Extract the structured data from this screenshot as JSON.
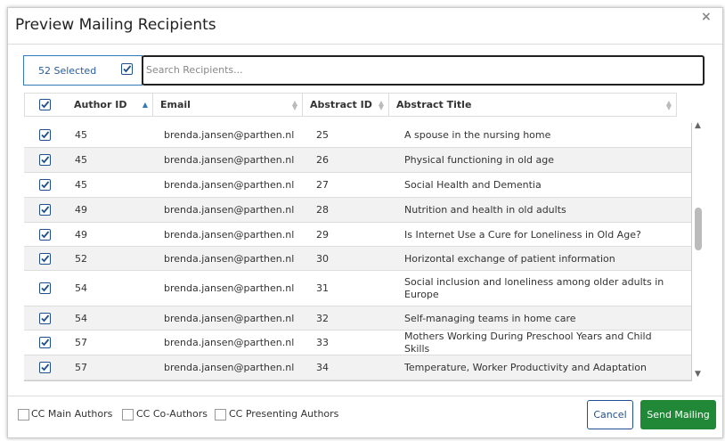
{
  "dialog": {
    "title": "Preview Mailing Recipients",
    "close": "×",
    "selected": "52 Selected",
    "search_placeholder": "Search Recipients...",
    "table": {
      "columns": [
        "Author ID",
        "Email",
        "Abstract ID",
        "Abstract Title"
      ],
      "rows": [
        [
          "45",
          "brenda.jansen@parthen.nl",
          "25",
          "A spouse in the nursing home"
        ],
        [
          "45",
          "brenda.jansen@parthen.nl",
          "26",
          "Physical functioning in old age"
        ],
        [
          "45",
          "brenda.jansen@parthen.nl",
          "27",
          "Social Health and Dementia"
        ],
        [
          "49",
          "brenda.jansen@parthen.nl",
          "28",
          "Nutrition and health in old adults"
        ],
        [
          "49",
          "brenda.jansen@parthen.nl",
          "29",
          "Is Internet Use a Cure for Loneliness in Old Age?"
        ],
        [
          "52",
          "brenda.jansen@parthen.nl",
          "30",
          "Horizontal exchange of patient information"
        ],
        [
          "54",
          "brenda.jansen@parthen.nl",
          "31",
          "Social inclusion and loneliness among older adults in Europe"
        ],
        [
          "54",
          "brenda.jansen@parthen.nl",
          "32",
          "Self-managing teams in home care"
        ],
        [
          "57",
          "brenda.jansen@parthen.nl",
          "33",
          "Mothers Working During Preschool Years and Child Skills"
        ],
        [
          "57",
          "brenda.jansen@parthen.nl",
          "34",
          "Temperature, Worker Productivity and Adaptation"
        ]
      ]
    },
    "cc_options": [
      "CC Main Authors",
      "CC Co-Authors",
      "CC Presenting Authors"
    ],
    "buttons": {
      "cancel": "Cancel",
      "send": "Send Mailing"
    }
  }
}
